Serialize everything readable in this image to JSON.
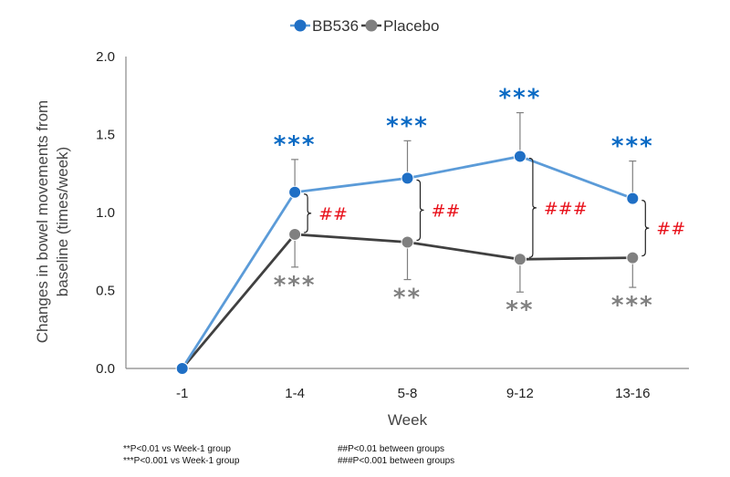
{
  "chart_data": {
    "type": "line",
    "categories": [
      "-1",
      "1-4",
      "5-8",
      "9-12",
      "13-16"
    ],
    "series": [
      {
        "name": "BB536",
        "color": "#1f6fc5",
        "line_color": "#5b9bd8",
        "values": [
          0.0,
          1.13,
          1.22,
          1.36,
          1.09
        ],
        "error_upper": [
          0.0,
          1.34,
          1.46,
          1.64,
          1.33
        ],
        "stars": [
          "",
          "***",
          "***",
          "***",
          "***"
        ]
      },
      {
        "name": "Placebo",
        "color": "#808080",
        "line_color": "#404040",
        "values": [
          0.0,
          0.86,
          0.81,
          0.7,
          0.71
        ],
        "error_lower": [
          0.0,
          0.65,
          0.57,
          0.49,
          0.52
        ],
        "stars": [
          "",
          "***",
          "**",
          "**",
          "***"
        ]
      }
    ],
    "between_group_marks": [
      "",
      "##",
      "##",
      "###",
      "##"
    ],
    "xlabel": "Week",
    "ylabel": "Changes in bowel movements from baseline (times/week)",
    "ylim": [
      0,
      2.0
    ],
    "yticks": [
      "0.0",
      "0.5",
      "1.0",
      "1.5",
      "2.0"
    ],
    "grid": false,
    "legend_position": "top"
  },
  "footnotes": {
    "left": [
      "**P<0.01 vs Week-1 group",
      "***P<0.001 vs Week-1 group"
    ],
    "right": [
      "##P<0.01 between groups",
      "###P<0.001 between groups"
    ]
  }
}
